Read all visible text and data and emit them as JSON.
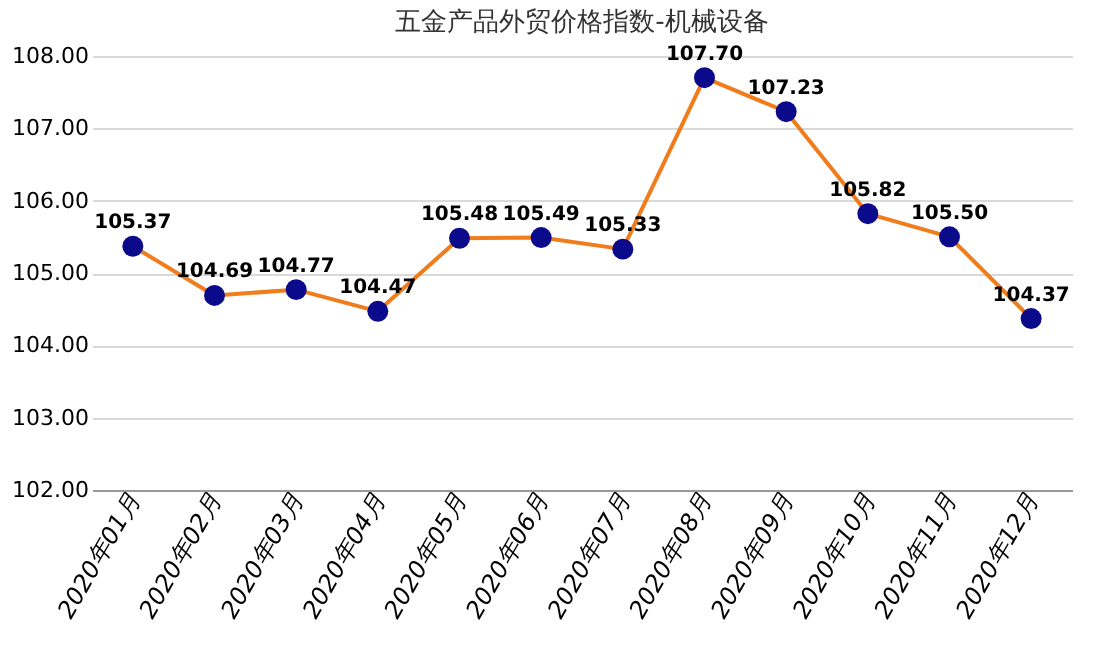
{
  "chart_data": {
    "type": "line",
    "title": "五金产品外贸价格指数-机械设备",
    "categories": [
      "2020年01月",
      "2020年02月",
      "2020年03月",
      "2020年04月",
      "2020年05月",
      "2020年06月",
      "2020年07月",
      "2020年08月",
      "2020年09月",
      "2020年10月",
      "2020年11月",
      "2020年12月"
    ],
    "series": [
      {
        "color": "#f07c1c",
        "colors": [
          "#0a0a8a",
          "#0a0a8a",
          "#0a0a8a",
          "#0a0a8a",
          "#0a0a8a",
          "#0a0a8a",
          "#0a0a8a",
          "#0a0a8a",
          "#0a0a8a",
          "#0a0a8a",
          "#0a0a8a",
          "#0a0a8a"
        ],
        "values": [
          105.37,
          104.69,
          104.77,
          104.47,
          105.48,
          105.49,
          105.33,
          107.7,
          107.23,
          105.82,
          105.5,
          104.37
        ],
        "value_labels": [
          "105.37",
          "104.69",
          "104.77",
          "104.47",
          "105.48",
          "105.49",
          "105.33",
          "107.70",
          "107.23",
          "105.82",
          "105.50",
          "104.37"
        ]
      }
    ],
    "ylim": [
      102,
      108
    ],
    "yticks": [
      {
        "value": 102,
        "label": "102.00"
      },
      {
        "value": 103,
        "label": "103.00"
      },
      {
        "value": 104,
        "label": "104.00"
      },
      {
        "value": 105,
        "label": "105.00"
      },
      {
        "value": 106,
        "label": "106.00"
      },
      {
        "value": 107,
        "label": "107.00"
      },
      {
        "value": 108,
        "label": "108.00"
      }
    ],
    "grid": "y",
    "marker": "circle",
    "line_style": "solid"
  }
}
